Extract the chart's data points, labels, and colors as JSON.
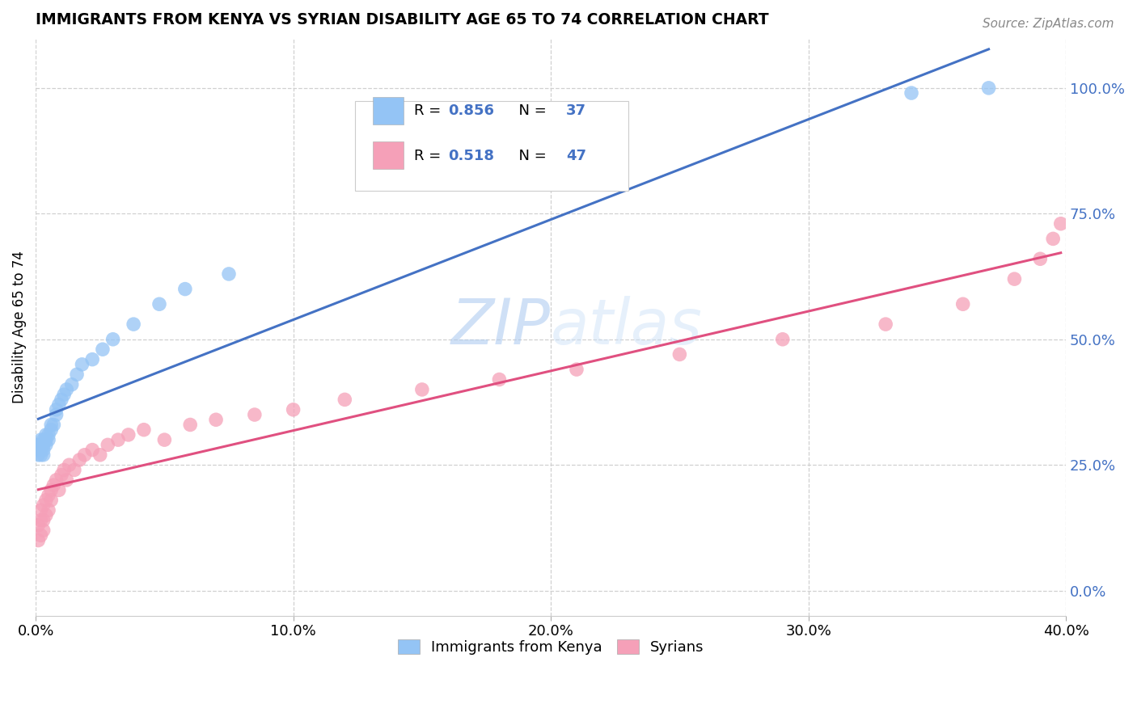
{
  "title": "IMMIGRANTS FROM KENYA VS SYRIAN DISABILITY AGE 65 TO 74 CORRELATION CHART",
  "source": "Source: ZipAtlas.com",
  "ylabel_label": "Disability Age 65 to 74",
  "xlim": [
    0.0,
    0.4
  ],
  "ylim": [
    -0.05,
    1.1
  ],
  "legend_label1": "Immigrants from Kenya",
  "legend_label2": "Syrians",
  "R1": 0.856,
  "N1": 37,
  "R2": 0.518,
  "N2": 47,
  "color_kenya": "#94c4f5",
  "color_syria": "#f5a0b8",
  "color_line_kenya": "#4472C4",
  "color_line_syria": "#E05080",
  "kenya_x": [
    0.001,
    0.001,
    0.001,
    0.002,
    0.002,
    0.002,
    0.002,
    0.003,
    0.003,
    0.003,
    0.003,
    0.004,
    0.004,
    0.004,
    0.005,
    0.005,
    0.006,
    0.006,
    0.007,
    0.008,
    0.008,
    0.009,
    0.01,
    0.011,
    0.012,
    0.014,
    0.016,
    0.018,
    0.022,
    0.026,
    0.03,
    0.038,
    0.048,
    0.058,
    0.075,
    0.34,
    0.37
  ],
  "kenya_y": [
    0.27,
    0.28,
    0.29,
    0.27,
    0.28,
    0.29,
    0.3,
    0.27,
    0.28,
    0.29,
    0.3,
    0.29,
    0.3,
    0.31,
    0.3,
    0.31,
    0.32,
    0.33,
    0.33,
    0.35,
    0.36,
    0.37,
    0.38,
    0.39,
    0.4,
    0.41,
    0.43,
    0.45,
    0.46,
    0.48,
    0.5,
    0.53,
    0.57,
    0.6,
    0.63,
    0.99,
    1.0
  ],
  "syria_x": [
    0.001,
    0.001,
    0.002,
    0.002,
    0.002,
    0.003,
    0.003,
    0.003,
    0.004,
    0.004,
    0.005,
    0.005,
    0.006,
    0.006,
    0.007,
    0.008,
    0.009,
    0.01,
    0.011,
    0.012,
    0.013,
    0.015,
    0.017,
    0.019,
    0.022,
    0.025,
    0.028,
    0.032,
    0.036,
    0.042,
    0.05,
    0.06,
    0.07,
    0.085,
    0.1,
    0.12,
    0.15,
    0.18,
    0.21,
    0.25,
    0.29,
    0.33,
    0.36,
    0.38,
    0.39,
    0.395,
    0.398
  ],
  "syria_y": [
    0.1,
    0.13,
    0.11,
    0.14,
    0.16,
    0.12,
    0.14,
    0.17,
    0.15,
    0.18,
    0.16,
    0.19,
    0.18,
    0.2,
    0.21,
    0.22,
    0.2,
    0.23,
    0.24,
    0.22,
    0.25,
    0.24,
    0.26,
    0.27,
    0.28,
    0.27,
    0.29,
    0.3,
    0.31,
    0.32,
    0.3,
    0.33,
    0.34,
    0.35,
    0.36,
    0.38,
    0.4,
    0.42,
    0.44,
    0.47,
    0.5,
    0.53,
    0.57,
    0.62,
    0.66,
    0.7,
    0.73
  ]
}
